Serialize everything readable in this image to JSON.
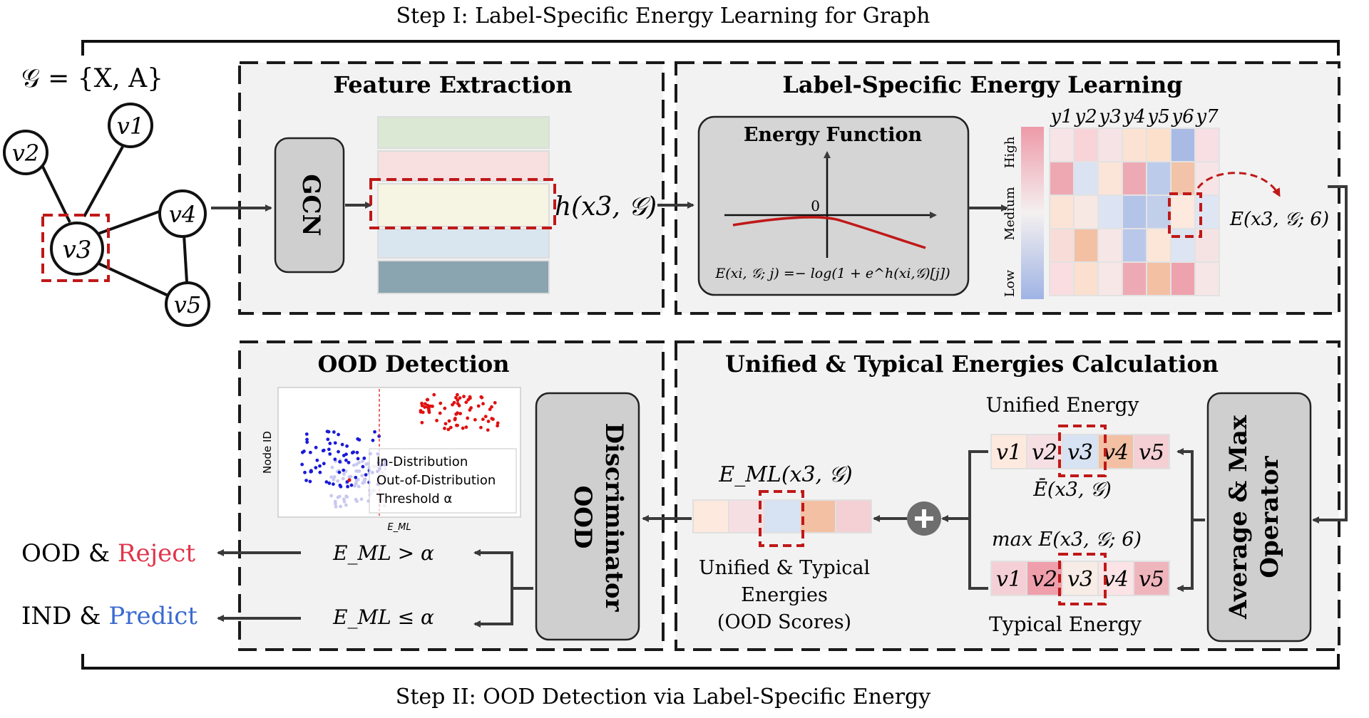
{
  "step1_title": "Step I: Label-Specific Energy Learning for Graph",
  "step2_title": "Step II: OOD Detection via Label-Specific Energy",
  "graph": {
    "label": "𝒢 = {X, A}",
    "nodes": [
      "v1",
      "v2",
      "v3",
      "v4",
      "v5"
    ]
  },
  "feature_extraction": {
    "title": "Feature Extraction",
    "gcn_label": "GCN",
    "h_label": "h(x3, 𝒢)",
    "feature_colors": [
      "#dbe8d4",
      "#f8dfe0",
      "#f6f4e2",
      "#d9e6f0",
      "#8aa4b0"
    ]
  },
  "label_specific": {
    "title": "Label-Specific Energy Learning",
    "energy_function_title": "Energy Function",
    "axis_zero": "0",
    "formula": "E(xi, 𝒢; j) =− log(1 + e^h(xi,𝒢)[j])",
    "column_labels": [
      "y1",
      "y2",
      "y3",
      "y4",
      "y5",
      "y6",
      "y7"
    ],
    "legend_labels": [
      "High",
      "Medium",
      "Low"
    ],
    "heatmap_colors": [
      [
        "#f6e4e6",
        "#f8d3d8",
        "#f6e3e6",
        "#fbe2d2",
        "#fde0cc",
        "#a9bbe4",
        "#f8dfe3"
      ],
      [
        "#eea8b2",
        "#dbe3f2",
        "#fbe5d8",
        "#eeaab4",
        "#bccbea",
        "#f2c3a8",
        "#f6e4e6"
      ],
      [
        "#fbe4d5",
        "#f8e8e4",
        "#dce4f3",
        "#b4c4e8",
        "#c2cfea",
        "#fde9de",
        "#dfe6f3"
      ],
      [
        "#f8dcd8",
        "#f3c0a4",
        "#f6e6e6",
        "#b9c8ea",
        "#fbe6d8",
        "#dde4f2",
        "#f5e3e3"
      ],
      [
        "#f9dde0",
        "#fbe0d0",
        "#f8e7e7",
        "#eeaab4",
        "#f3c0a4",
        "#eea2ae",
        "#f6e6e6"
      ]
    ],
    "output_label": "E(x3, 𝒢; 6)"
  },
  "unified_typical": {
    "title": "Unified & Typical Energies Calculation",
    "unified_energy_label": "Unified Energy",
    "unified_formula": "Ē(x3, 𝒢)",
    "max_formula": "max E(x3, 𝒢; 6)",
    "typical_energy_label": "Typical Energy",
    "unified_cells": [
      "v1",
      "v2",
      "v3",
      "v4",
      "v5"
    ],
    "unified_colors": [
      "#fde9de",
      "#f6dfe3",
      "#d7e2f3",
      "#f3c0a4",
      "#f4cfd4"
    ],
    "typical_cells": [
      "v1",
      "v2",
      "v3",
      "v4",
      "v5"
    ],
    "typical_colors": [
      "#f4d0d6",
      "#ef9fac",
      "#f7ece6",
      "#fbe3e6",
      "#efb5bd"
    ],
    "operator_label_1": "Average & Max",
    "operator_label_2": "Operator",
    "eml_label": "E_ML(x3, 𝒢)",
    "eml_colors": [
      "#fde9de",
      "#f6dfe3",
      "#d7e2f3",
      "#f3c0a4",
      "#f4cfd4"
    ],
    "scores_caption": [
      "Unified & Typical",
      "Energies",
      "(OOD Scores)"
    ]
  },
  "ood_detection": {
    "title": "OOD Detection",
    "discriminator_label_1": "OOD",
    "discriminator_label_2": "Discriminator",
    "scatter_ylabel": "Node ID",
    "scatter_xlabel": "E_ML",
    "legend": [
      "In-Distribution",
      "Out-of-Distribution",
      "Threshold α"
    ],
    "colors": {
      "ind": "#1a1ad8",
      "ood": "#e01010",
      "faint": "#c8c8f0"
    },
    "rule_reject": "E_ML > α",
    "rule_predict": "E_ML ≤ α"
  },
  "outputs": {
    "reject_prefix": "OOD & ",
    "reject_word": "Reject",
    "predict_prefix": "IND & ",
    "predict_word": "Predict",
    "reject_color": "#e0344a",
    "predict_color": "#3a6ad0"
  }
}
